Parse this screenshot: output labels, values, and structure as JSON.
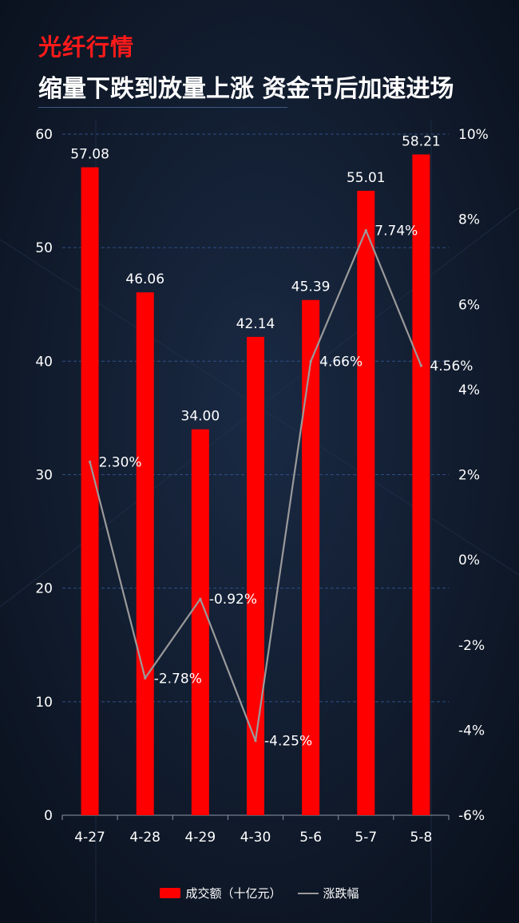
{
  "header": {
    "category": "光纤行情",
    "title": "缩量下跌到放量上涨 资金节后加速进场"
  },
  "colors": {
    "bar": "#ff0000",
    "line": "#9a9a9a",
    "category_text": "#ff1a1a",
    "background": "#0d1524",
    "gridline": "#2f4f86"
  },
  "chart_data": {
    "type": "bar",
    "categories": [
      "4-27",
      "4-28",
      "4-29",
      "4-30",
      "5-6",
      "5-7",
      "5-8"
    ],
    "series": [
      {
        "name": "成交额（十亿元）",
        "type": "bar",
        "axis": "left",
        "values": [
          57.08,
          46.06,
          34.0,
          42.14,
          45.39,
          55.01,
          58.21
        ],
        "labels": [
          "57.08",
          "46.06",
          "34.00",
          "42.14",
          "45.39",
          "55.01",
          "58.21"
        ]
      },
      {
        "name": "涨跌幅",
        "type": "line",
        "axis": "right",
        "values": [
          2.3,
          -2.78,
          -0.92,
          -4.25,
          4.66,
          7.74,
          4.56
        ],
        "labels": [
          "2.30%",
          "-2.78%",
          "-0.92%",
          "-4.25%",
          "4.66%",
          "7.74%",
          "4.56%"
        ]
      }
    ],
    "y_left": {
      "min": 0,
      "max": 60,
      "ticks": [
        "0",
        "10",
        "20",
        "30",
        "40",
        "50",
        "60"
      ]
    },
    "y_right": {
      "min": -6,
      "max": 10,
      "ticks": [
        "-6%",
        "-4%",
        "-2%",
        "0%",
        "2%",
        "4%",
        "6%",
        "8%",
        "10%"
      ]
    },
    "grid": true,
    "legend_position": "bottom"
  }
}
